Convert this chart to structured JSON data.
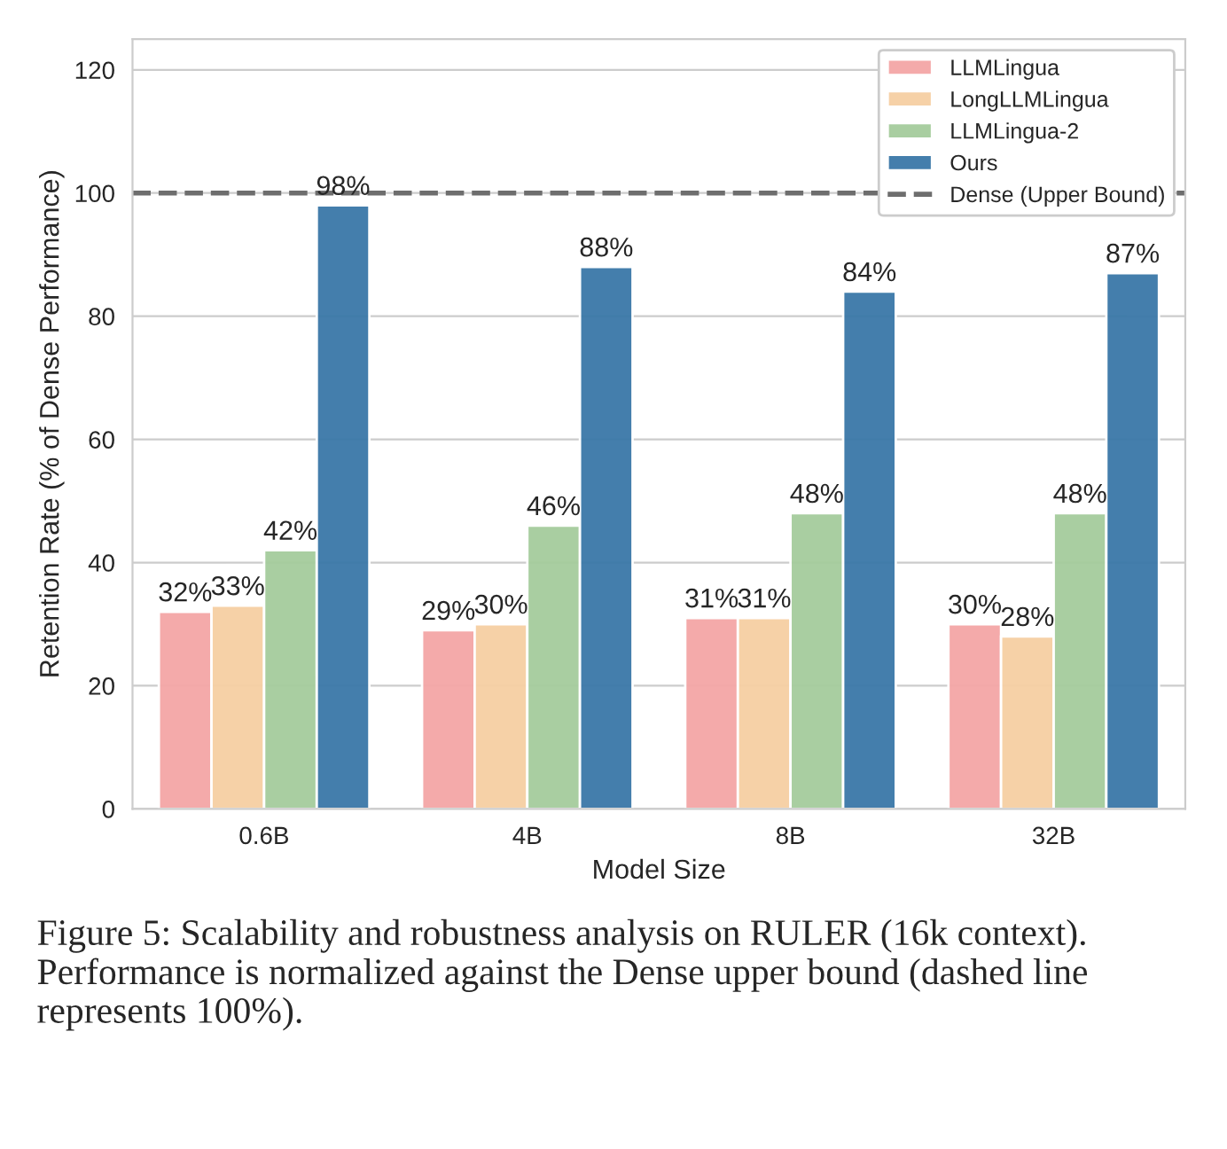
{
  "chart_data": {
    "type": "bar",
    "categories": [
      "0.6B",
      "4B",
      "8B",
      "32B"
    ],
    "series": [
      {
        "name": "LLMLingua",
        "color": "#f4a6a6",
        "values": [
          32,
          29,
          31,
          30
        ],
        "value_labels": [
          "32%",
          "29%",
          "31%",
          "30%"
        ]
      },
      {
        "name": "LongLLMLingua",
        "color": "#f6cfa3",
        "values": [
          33,
          30,
          31,
          28
        ],
        "value_labels": [
          "33%",
          "30%",
          "31%",
          "28%"
        ]
      },
      {
        "name": "LLMLingua-2",
        "color": "#a5cc9c",
        "values": [
          42,
          46,
          48,
          48
        ],
        "value_labels": [
          "42%",
          "46%",
          "48%",
          "48%"
        ]
      },
      {
        "name": "Ours",
        "color": "#3a78a8",
        "values": [
          98,
          88,
          84,
          87
        ],
        "value_labels": [
          "98%",
          "88%",
          "84%",
          "87%"
        ]
      }
    ],
    "xlabel": "Model Size",
    "ylabel": "Retention Rate (% of Dense Performance)",
    "ylim": [
      0,
      125
    ],
    "yticks": [
      0,
      20,
      40,
      60,
      80,
      100,
      120
    ],
    "ref_lines": [
      {
        "axis": "y",
        "value": 100,
        "label": "Dense (Upper Bound)",
        "color": "#6e6e6e",
        "line_style": "dashed"
      }
    ],
    "grid": "y",
    "legend": "top right",
    "annotations": [
      "Figure 5: Scalability and robustness analysis on RULER (16k context). Performance is normalized against the Dense upper bound (dashed line represents 100%)."
    ]
  }
}
